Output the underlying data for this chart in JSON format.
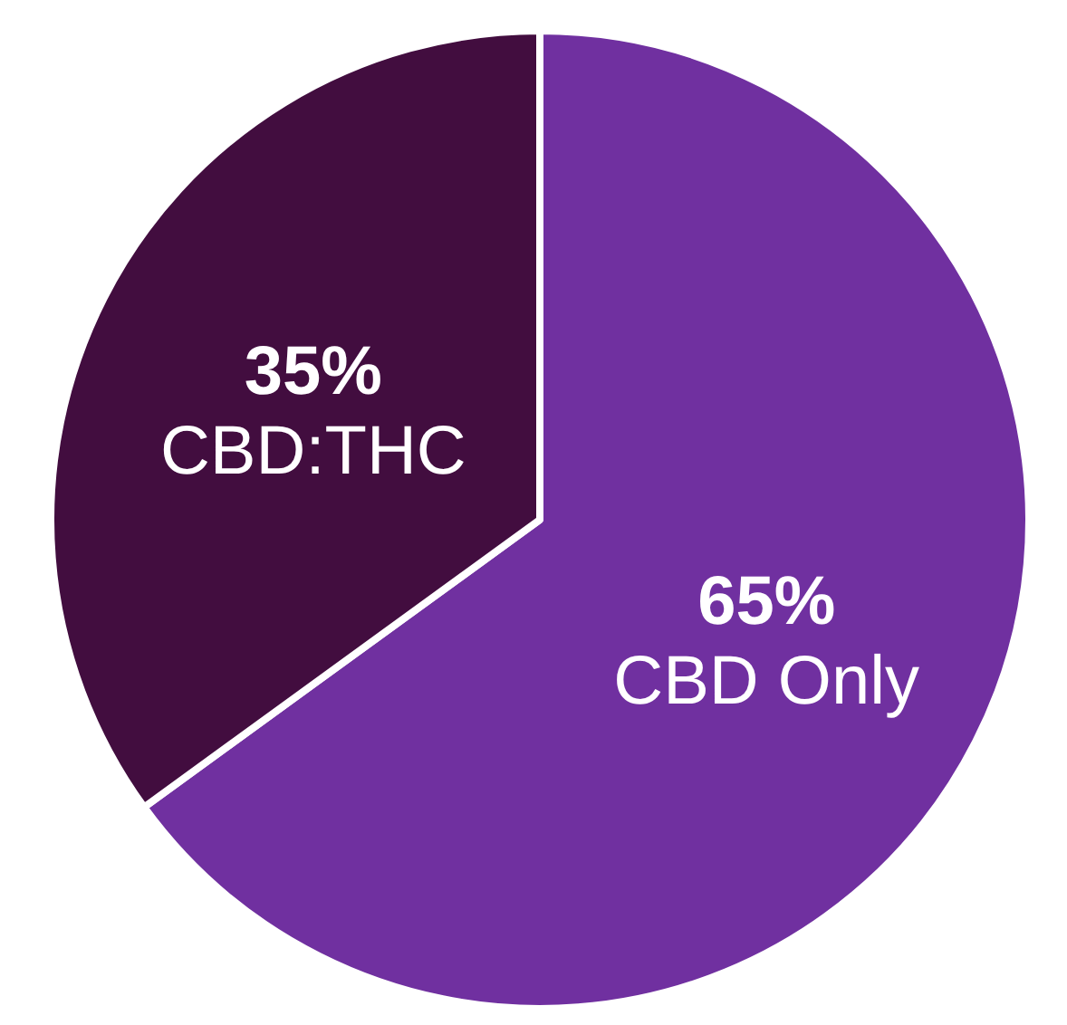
{
  "chart_data": {
    "type": "pie",
    "categories": [
      "CBD Only",
      "CBD:THC"
    ],
    "values": [
      65,
      35
    ],
    "value_labels": [
      "65%",
      "35%"
    ],
    "colors": [
      "#7030a0",
      "#420d3f"
    ]
  }
}
